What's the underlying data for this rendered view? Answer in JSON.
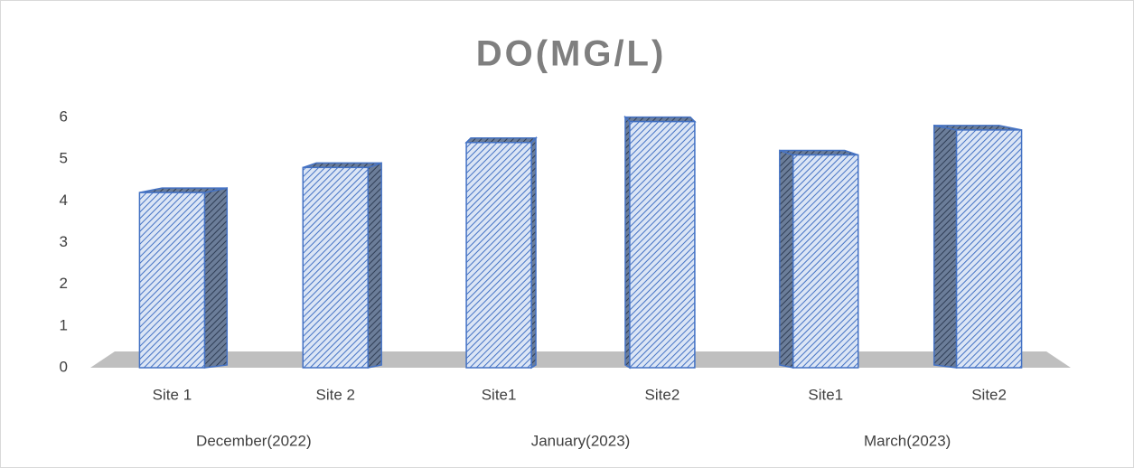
{
  "chart_data": {
    "type": "bar3d",
    "title": "DO(MG/L)",
    "categories": [
      "Site 1",
      "Site 2",
      "Site1",
      "Site2",
      "Site1",
      "Site2"
    ],
    "groups": [
      "December(2022)",
      "January(2023)",
      "March(2023)"
    ],
    "values": [
      4.2,
      4.8,
      5.4,
      5.9,
      5.1,
      5.7
    ],
    "color": "#4472c4",
    "ylim": [
      0,
      6
    ],
    "yticks": [
      0,
      1,
      2,
      3,
      4,
      5,
      6
    ],
    "grid": false
  }
}
